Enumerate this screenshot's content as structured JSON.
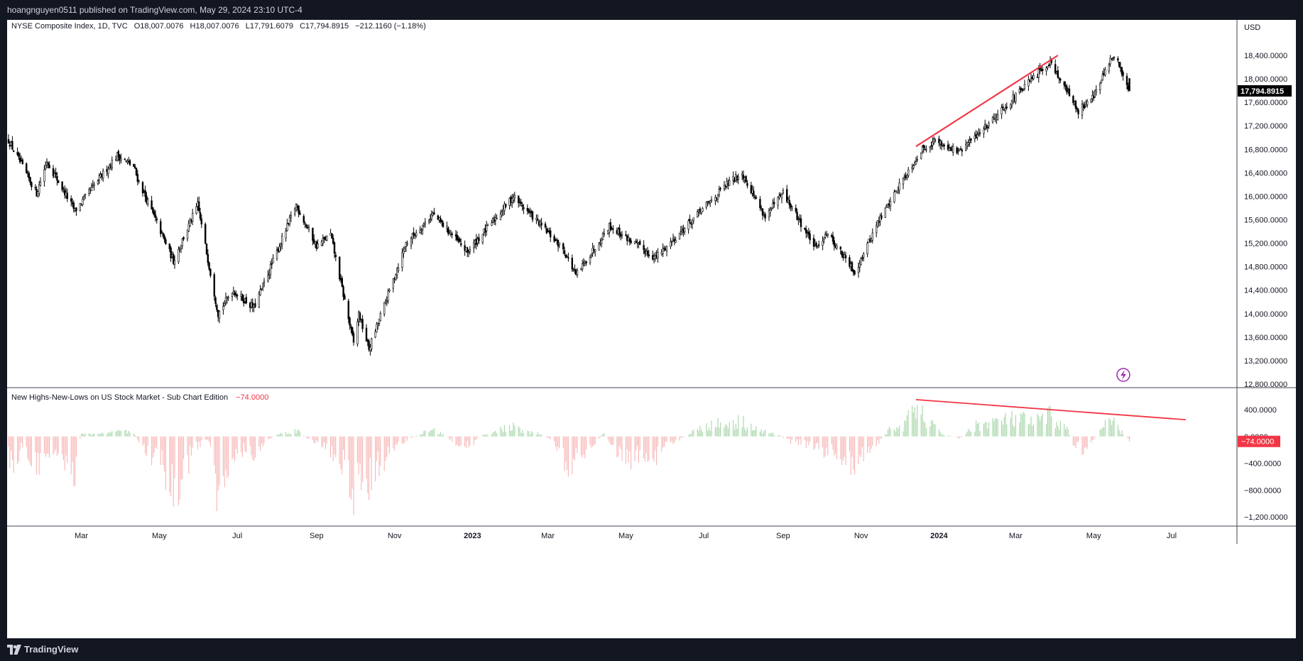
{
  "header": {
    "publisher": "hoangnguyen0511 published on TradingView.com, May 29, 2024 23:10 UTC-4"
  },
  "footer": {
    "brand": "TradingView"
  },
  "currency": "USD",
  "main_legend": {
    "title": "NYSE Composite Index, 1D, TVC",
    "open": "O18,007.0076",
    "high": "H18,007.0076",
    "low": "L17,791.6079",
    "close": "C17,794.8915",
    "change": "−212.1160 (−1.18%)"
  },
  "sub_legend": {
    "title": "New Highs-New-Lows on US Stock Market - Sub Chart Edition",
    "value": "−74.0000"
  },
  "last_price_label": "17,794.8915",
  "sub_last_label": "−74.0000",
  "colors": {
    "candle": "#000000",
    "positive": "#a5d6a7",
    "negative": "#f7b5b5",
    "trendline": "#f23645",
    "scale_bg": "#000000",
    "sub_label_bg": "#f23645",
    "lightning": "#9c27b0"
  },
  "chart_data": [
    {
      "type": "candlestick",
      "title": "NYSE Composite Index, 1D, TVC",
      "y_axis_ticks": [
        "18,400.0000",
        "18,000.0000",
        "17,600.0000",
        "17,200.0000",
        "16,800.0000",
        "16,400.0000",
        "16,000.0000",
        "15,600.0000",
        "15,200.0000",
        "14,800.0000",
        "14,400.0000",
        "14,000.0000",
        "13,600.0000",
        "13,200.0000",
        "12,800.0000"
      ],
      "ylim": [
        12800,
        18400
      ],
      "x_axis_ticks": [
        "Mar",
        "May",
        "Jul",
        "Sep",
        "Nov",
        "2023",
        "Mar",
        "May",
        "Jul",
        "Sep",
        "Nov",
        "2024",
        "Mar",
        "May",
        "Jul"
      ],
      "x_range": [
        "2022-01-03",
        "2024-05-29"
      ],
      "anchors": [
        {
          "date": "2022-01-03",
          "close": 16950
        },
        {
          "date": "2022-01-25",
          "close": 16050
        },
        {
          "date": "2022-02-02",
          "close": 16600
        },
        {
          "date": "2022-02-24",
          "close": 15750
        },
        {
          "date": "2022-03-29",
          "close": 16700
        },
        {
          "date": "2022-04-11",
          "close": 16500
        },
        {
          "date": "2022-04-14",
          "close": 16300
        },
        {
          "date": "2022-05-12",
          "close": 14900
        },
        {
          "date": "2022-05-31",
          "close": 15850
        },
        {
          "date": "2022-06-16",
          "close": 14000
        },
        {
          "date": "2022-06-27",
          "close": 14400
        },
        {
          "date": "2022-07-14",
          "close": 14100
        },
        {
          "date": "2022-08-16",
          "close": 15850
        },
        {
          "date": "2022-09-01",
          "close": 15150
        },
        {
          "date": "2022-09-12",
          "close": 15350
        },
        {
          "date": "2022-09-30",
          "close": 13500
        },
        {
          "date": "2022-10-04",
          "close": 14000
        },
        {
          "date": "2022-10-12",
          "close": 13400
        },
        {
          "date": "2022-11-10",
          "close": 15200
        },
        {
          "date": "2022-12-01",
          "close": 15700
        },
        {
          "date": "2022-12-28",
          "close": 15050
        },
        {
          "date": "2023-02-02",
          "close": 16000
        },
        {
          "date": "2023-03-13",
          "close": 15100
        },
        {
          "date": "2023-03-23",
          "close": 14650
        },
        {
          "date": "2023-04-18",
          "close": 15500
        },
        {
          "date": "2023-05-24",
          "close": 14950
        },
        {
          "date": "2023-07-19",
          "close": 16200
        },
        {
          "date": "2023-07-31",
          "close": 16400
        },
        {
          "date": "2023-08-18",
          "close": 15650
        },
        {
          "date": "2023-09-01",
          "close": 16050
        },
        {
          "date": "2023-09-27",
          "close": 15100
        },
        {
          "date": "2023-10-05",
          "close": 15400
        },
        {
          "date": "2023-10-27",
          "close": 14700
        },
        {
          "date": "2023-11-14",
          "close": 15550
        },
        {
          "date": "2023-12-04",
          "close": 16300
        },
        {
          "date": "2023-12-19",
          "close": 16800
        },
        {
          "date": "2023-12-29",
          "close": 16950
        },
        {
          "date": "2024-01-17",
          "close": 16750
        },
        {
          "date": "2024-03-28",
          "close": 18300
        },
        {
          "date": "2024-04-19",
          "close": 17450
        },
        {
          "date": "2024-05-02",
          "close": 17750
        },
        {
          "date": "2024-05-15",
          "close": 18350
        },
        {
          "date": "2024-05-20",
          "close": 18280
        },
        {
          "date": "2024-05-29",
          "close": 17794.8915
        }
      ],
      "last": {
        "date": "2024-05-29",
        "open": 18007.0076,
        "high": 18007.0076,
        "low": 17791.6079,
        "close": 17794.8915
      },
      "trendline": {
        "from": {
          "date": "2023-12-14",
          "value": 16850
        },
        "to": {
          "date": "2024-04-03",
          "value": 18400
        }
      }
    },
    {
      "type": "bar",
      "title": "New Highs-New-Lows on US Stock Market - Sub Chart Edition",
      "y_axis_ticks": [
        "400.0000",
        "0.0000",
        "−400.0000",
        "−800.0000",
        "−1,200.0000"
      ],
      "ylim": [
        -1200,
        400
      ],
      "last_value": -74,
      "anchors": [
        {
          "date": "2022-01-03",
          "value": -250
        },
        {
          "date": "2022-01-07",
          "value": -800
        },
        {
          "date": "2022-01-12",
          "value": -200
        },
        {
          "date": "2022-01-20",
          "value": -400
        },
        {
          "date": "2022-01-28",
          "value": -650
        },
        {
          "date": "2022-02-04",
          "value": -300
        },
        {
          "date": "2022-02-11",
          "value": -350
        },
        {
          "date": "2022-02-23",
          "value": -750
        },
        {
          "date": "2022-03-01",
          "value": 40
        },
        {
          "date": "2022-03-22",
          "value": 60
        },
        {
          "date": "2022-04-01",
          "value": 100
        },
        {
          "date": "2022-04-11",
          "value": 50
        },
        {
          "date": "2022-04-22",
          "value": -300
        },
        {
          "date": "2022-05-02",
          "value": -450
        },
        {
          "date": "2022-05-12",
          "value": -1000
        },
        {
          "date": "2022-05-19",
          "value": -950
        },
        {
          "date": "2022-05-26",
          "value": -250
        },
        {
          "date": "2022-06-01",
          "value": -150
        },
        {
          "date": "2022-06-08",
          "value": -60
        },
        {
          "date": "2022-06-16",
          "value": -1200
        },
        {
          "date": "2022-06-22",
          "value": -600
        },
        {
          "date": "2022-07-01",
          "value": -350
        },
        {
          "date": "2022-07-07",
          "value": -200
        },
        {
          "date": "2022-07-14",
          "value": -400
        },
        {
          "date": "2022-07-22",
          "value": -100
        },
        {
          "date": "2022-08-01",
          "value": 30
        },
        {
          "date": "2022-08-16",
          "value": 120
        },
        {
          "date": "2022-08-26",
          "value": -50
        },
        {
          "date": "2022-09-06",
          "value": -200
        },
        {
          "date": "2022-09-13",
          "value": -300
        },
        {
          "date": "2022-09-23",
          "value": -500
        },
        {
          "date": "2022-09-30",
          "value": -1000
        },
        {
          "date": "2022-10-07",
          "value": -650
        },
        {
          "date": "2022-10-14",
          "value": -850
        },
        {
          "date": "2022-10-21",
          "value": -500
        },
        {
          "date": "2022-11-01",
          "value": -200
        },
        {
          "date": "2022-11-10",
          "value": -60
        },
        {
          "date": "2022-11-25",
          "value": 80
        },
        {
          "date": "2022-12-02",
          "value": 100
        },
        {
          "date": "2022-12-10",
          "value": 30
        },
        {
          "date": "2022-12-20",
          "value": -150
        },
        {
          "date": "2022-12-30",
          "value": -200
        },
        {
          "date": "2023-01-06",
          "value": 0
        },
        {
          "date": "2023-01-20",
          "value": 100
        },
        {
          "date": "2023-02-02",
          "value": 180
        },
        {
          "date": "2023-02-10",
          "value": 80
        },
        {
          "date": "2023-02-20",
          "value": 60
        },
        {
          "date": "2023-03-01",
          "value": -20
        },
        {
          "date": "2023-03-10",
          "value": -250
        },
        {
          "date": "2023-03-16",
          "value": -550
        },
        {
          "date": "2023-03-23",
          "value": -400
        },
        {
          "date": "2023-04-03",
          "value": -200
        },
        {
          "date": "2023-04-14",
          "value": 60
        },
        {
          "date": "2023-04-25",
          "value": -300
        },
        {
          "date": "2023-05-04",
          "value": -450
        },
        {
          "date": "2023-05-15",
          "value": -300
        },
        {
          "date": "2023-05-24",
          "value": -400
        },
        {
          "date": "2023-06-05",
          "value": -150
        },
        {
          "date": "2023-06-20",
          "value": 60
        },
        {
          "date": "2023-07-03",
          "value": 200
        },
        {
          "date": "2023-07-20",
          "value": 250
        },
        {
          "date": "2023-07-31",
          "value": 280
        },
        {
          "date": "2023-08-15",
          "value": 100
        },
        {
          "date": "2023-08-28",
          "value": 30
        },
        {
          "date": "2023-09-08",
          "value": -100
        },
        {
          "date": "2023-09-21",
          "value": -150
        },
        {
          "date": "2023-10-02",
          "value": -250
        },
        {
          "date": "2023-10-12",
          "value": -300
        },
        {
          "date": "2023-10-20",
          "value": -450
        },
        {
          "date": "2023-10-30",
          "value": -480
        },
        {
          "date": "2023-11-06",
          "value": -300
        },
        {
          "date": "2023-11-15",
          "value": -100
        },
        {
          "date": "2023-11-24",
          "value": 150
        },
        {
          "date": "2023-12-05",
          "value": 200
        },
        {
          "date": "2023-12-14",
          "value": 550
        },
        {
          "date": "2023-12-20",
          "value": 350
        },
        {
          "date": "2024-01-03",
          "value": 50
        },
        {
          "date": "2024-01-17",
          "value": -30
        },
        {
          "date": "2024-01-29",
          "value": 200
        },
        {
          "date": "2024-02-09",
          "value": 250
        },
        {
          "date": "2024-02-21",
          "value": 300
        },
        {
          "date": "2024-03-04",
          "value": 320
        },
        {
          "date": "2024-03-15",
          "value": 250
        },
        {
          "date": "2024-03-28",
          "value": 380
        },
        {
          "date": "2024-04-10",
          "value": 150
        },
        {
          "date": "2024-04-16",
          "value": -200
        },
        {
          "date": "2024-04-22",
          "value": -250
        },
        {
          "date": "2024-05-01",
          "value": -50
        },
        {
          "date": "2024-05-10",
          "value": 200
        },
        {
          "date": "2024-05-16",
          "value": 280
        },
        {
          "date": "2024-05-22",
          "value": 100
        },
        {
          "date": "2024-05-29",
          "value": -74
        }
      ],
      "trendline": {
        "from": {
          "date": "2023-12-14",
          "value": 550
        },
        "to": {
          "date": "2024-07-12",
          "value": 250
        }
      }
    }
  ]
}
